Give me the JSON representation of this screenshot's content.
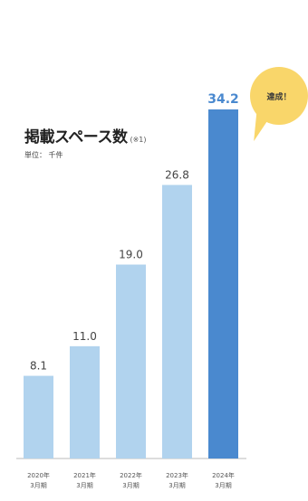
{
  "title": "掲載スペース数",
  "title_note": "(※1)",
  "unit": "単位： 千件",
  "badge": "達成！",
  "colors": {
    "bar_light": "#b1d3ee",
    "bar_highlight": "#4a89cf",
    "value_text": "#444444",
    "value_highlight": "#4a89cf",
    "axis": "#bbbbbb",
    "badge": "#f9d66a"
  },
  "chart_data": {
    "type": "bar",
    "categories": [
      [
        "2020年",
        "3月期"
      ],
      [
        "2021年",
        "3月期"
      ],
      [
        "2022年",
        "3月期"
      ],
      [
        "2023年",
        "3月期"
      ],
      [
        "2024年",
        "3月期"
      ]
    ],
    "values": [
      8.1,
      11.0,
      19.0,
      26.8,
      34.2
    ],
    "value_labels": [
      "8.1",
      "11.0",
      "19.0",
      "26.8",
      "34.2"
    ],
    "highlight_index": 4,
    "title": "掲載スペース数",
    "ylim": [
      0,
      34.2
    ],
    "grid": false
  }
}
